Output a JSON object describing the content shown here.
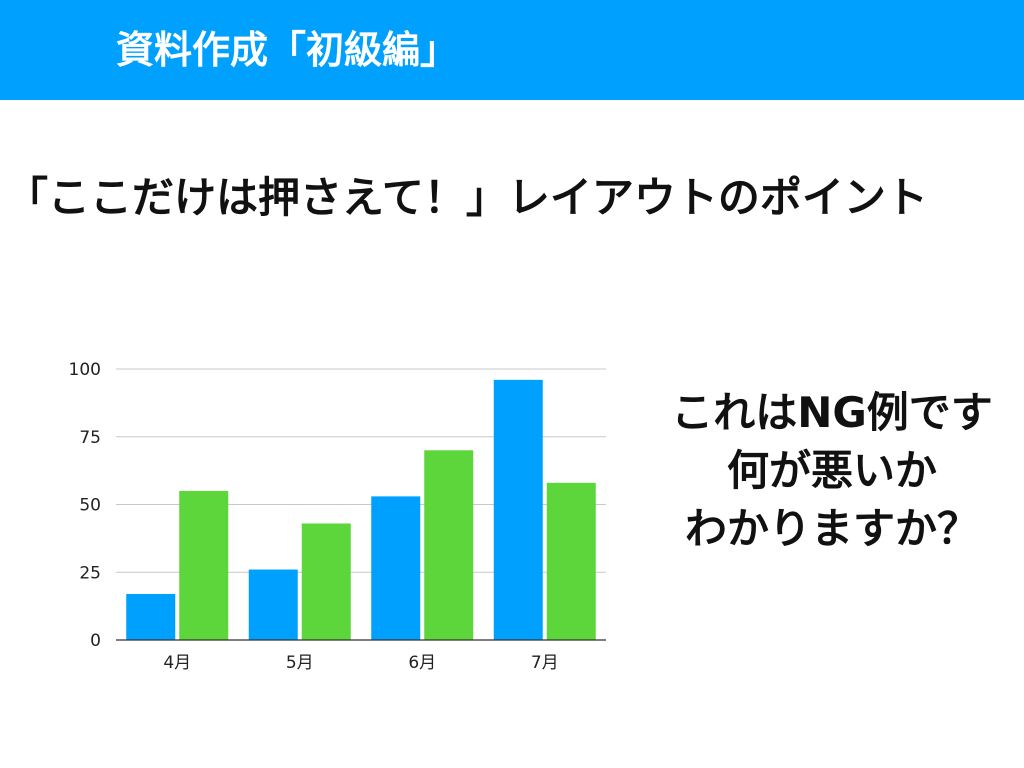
{
  "header": {
    "title": "資料作成「初級編」"
  },
  "subtitle": "「ここだけは押さえて！」レイアウトのポイント",
  "callout": {
    "lines": [
      "これはNG例です",
      "何が悪いか",
      "わかりますか？"
    ]
  },
  "colors": {
    "banner": "#00a0ff",
    "series_a": "#00a0ff",
    "series_b": "#5cd63a",
    "grid": "#c8c8c8"
  },
  "chart_data": {
    "type": "bar",
    "categories": [
      "4月",
      "5月",
      "6月",
      "7月"
    ],
    "series": [
      {
        "values": [
          17,
          26,
          53,
          96
        ]
      },
      {
        "values": [
          55,
          43,
          70,
          58
        ]
      }
    ],
    "yticks": [
      0,
      25,
      50,
      75,
      100
    ],
    "ylim": [
      0,
      100
    ],
    "grid": true,
    "legend": "none",
    "title": "",
    "xlabel": "",
    "ylabel": ""
  }
}
